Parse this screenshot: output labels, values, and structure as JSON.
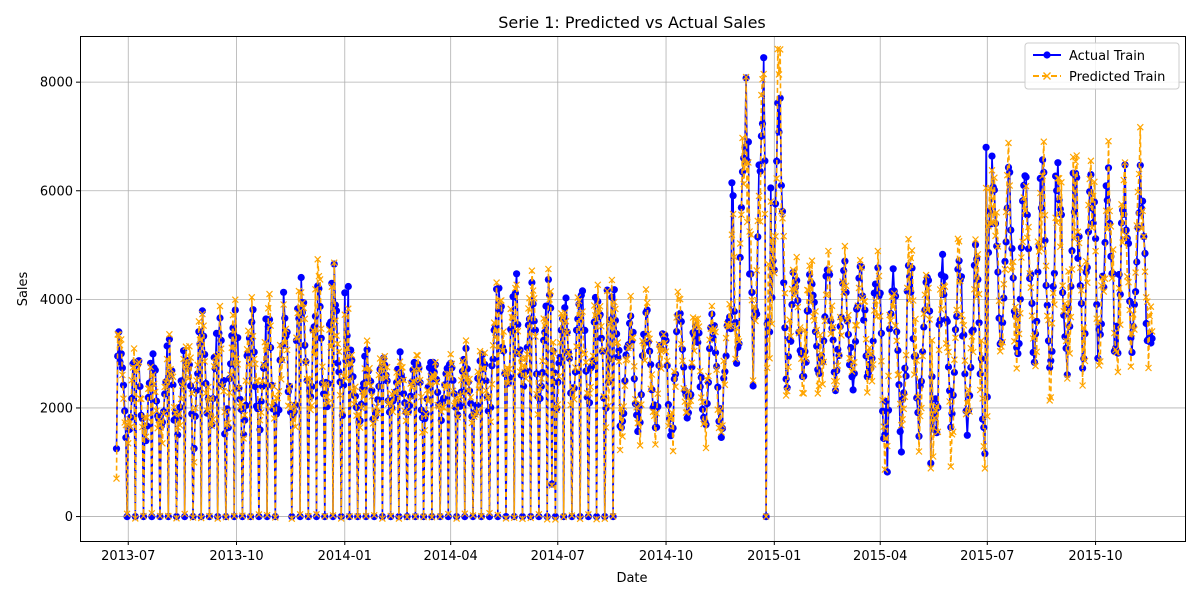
{
  "chart_data": {
    "type": "line",
    "title": "Serie 1: Predicted vs Actual Sales",
    "xlabel": "Date",
    "ylabel": "Sales",
    "x_axis_type": "date",
    "xlim": [
      "2013-05-21",
      "2015-12-16"
    ],
    "ylim": [
      -450,
      8850
    ],
    "x_ticks": [
      "2013-07",
      "2013-10",
      "2014-01",
      "2014-04",
      "2014-07",
      "2014-10",
      "2015-01",
      "2015-04",
      "2015-07",
      "2015-10"
    ],
    "x_tick_dates": [
      "2013-07-01",
      "2013-10-01",
      "2014-01-01",
      "2014-04-01",
      "2014-07-01",
      "2014-10-01",
      "2015-01-01",
      "2015-04-01",
      "2015-07-01",
      "2015-10-01"
    ],
    "y_ticks": [
      0,
      2000,
      4000,
      6000,
      8000
    ],
    "grid": true,
    "legend_position": "upper right",
    "date_range": [
      "2013-06-21",
      "2015-11-18"
    ],
    "series": [
      {
        "name": "Actual Train",
        "color": "#0000ff",
        "line_style": "solid",
        "marker": "circle",
        "segments": [
          {
            "from": "2013-06-21",
            "to": "2013-08-20",
            "low": 1100,
            "high": 3400,
            "closed_day": "Sunday"
          },
          {
            "from": "2013-08-20",
            "to": "2013-11-20",
            "low": 1150,
            "high": 4130,
            "closed_day": "Sunday"
          },
          {
            "from": "2013-11-20",
            "to": "2014-01-05",
            "low": 1700,
            "high": 4650,
            "closed_day": "Sunday"
          },
          {
            "from": "2014-01-05",
            "to": "2014-05-05",
            "low": 1600,
            "high": 3150,
            "closed_day": "Sunday"
          },
          {
            "from": "2014-05-05",
            "to": "2014-08-22",
            "low": 1900,
            "high": 4470,
            "closed_day": "Sunday"
          },
          {
            "from": "2014-08-22",
            "to": "2014-11-25",
            "low": 1350,
            "high": 4000,
            "closed_day": "none"
          },
          {
            "from": "2014-11-25",
            "to": "2015-01-10",
            "low": 2000,
            "high": 8450,
            "closed_day": "none"
          },
          {
            "from": "2015-01-10",
            "to": "2015-04-01",
            "low": 2200,
            "high": 4850,
            "closed_day": "none"
          },
          {
            "from": "2015-04-01",
            "to": "2015-07-01",
            "low": 1000,
            "high": 5150,
            "closed_day": "none"
          },
          {
            "from": "2015-07-01",
            "to": "2015-11-18",
            "low": 2450,
            "high": 6800,
            "closed_day": "none"
          }
        ],
        "notable_points": [
          {
            "date": "2013-06-21",
            "value": 1250
          },
          {
            "date": "2013-06-23",
            "value": 3400
          },
          {
            "date": "2013-11-10",
            "value": 4130
          },
          {
            "date": "2013-12-23",
            "value": 4650
          },
          {
            "date": "2014-01-01",
            "value": 4120
          },
          {
            "date": "2014-05-27",
            "value": 4470
          },
          {
            "date": "2014-06-26",
            "value": 600
          },
          {
            "date": "2014-08-12",
            "value": 4170
          },
          {
            "date": "2014-12-23",
            "value": 8450
          },
          {
            "date": "2014-12-24",
            "value": 6550
          },
          {
            "date": "2014-12-25",
            "value": 0
          },
          {
            "date": "2014-12-29",
            "value": 6050
          },
          {
            "date": "2015-04-07",
            "value": 820
          },
          {
            "date": "2015-05-14",
            "value": 980
          },
          {
            "date": "2015-06-30",
            "value": 6800
          },
          {
            "date": "2015-08-28",
            "value": 6270
          },
          {
            "date": "2015-11-18",
            "value": 3280
          }
        ]
      },
      {
        "name": "Predicted Train",
        "color": "#ffa500",
        "line_style": "dashed",
        "marker": "x",
        "tracks": "Actual Train",
        "notable_points": [
          {
            "date": "2013-06-21",
            "value": 700
          },
          {
            "date": "2014-12-23",
            "value": 8150
          },
          {
            "date": "2015-04-07",
            "value": 1300
          },
          {
            "date": "2015-06-30",
            "value": 6050
          }
        ]
      }
    ]
  }
}
